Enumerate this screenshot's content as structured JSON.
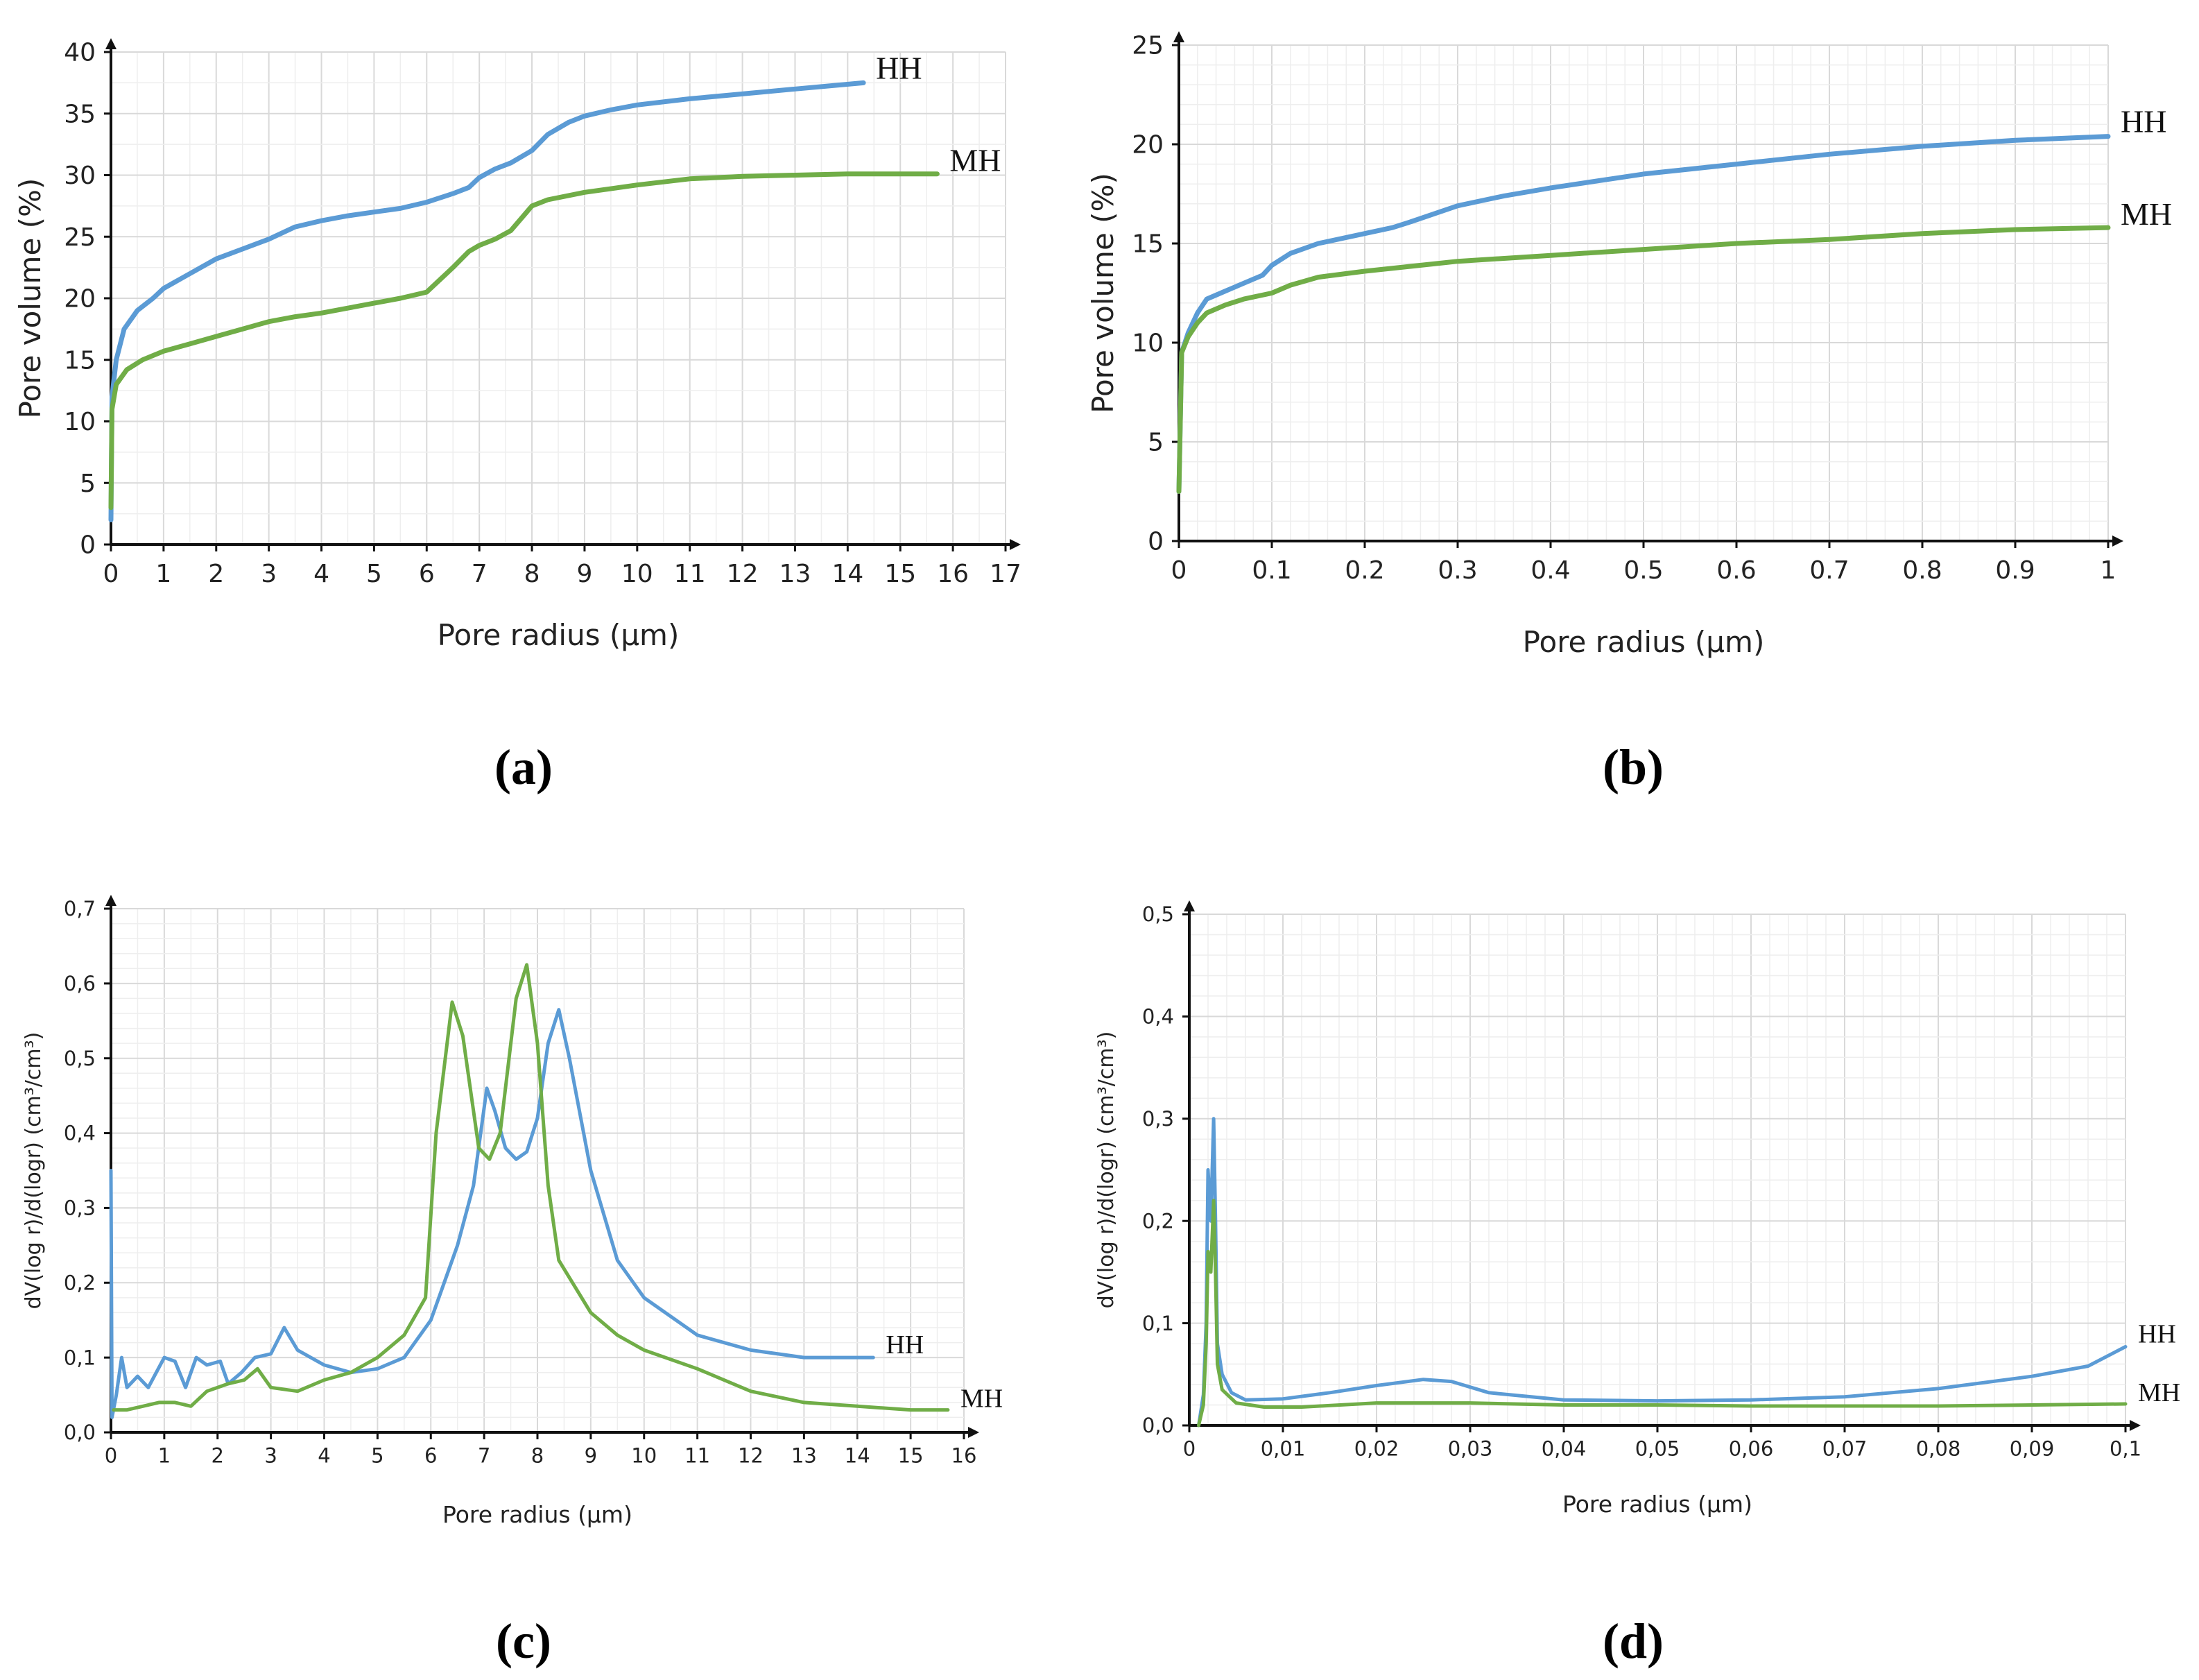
{
  "chart_data": [
    {
      "panel": "a",
      "panel_label": "(a)",
      "type": "line",
      "xlabel": "Pore radius (μm)",
      "ylabel": "Pore volume (%)",
      "xlim": [
        0,
        17
      ],
      "ylim": [
        0,
        40
      ],
      "xticks": [
        "0",
        "1",
        "2",
        "3",
        "4",
        "5",
        "6",
        "7",
        "8",
        "9",
        "10",
        "11",
        "12",
        "13",
        "14",
        "15",
        "16",
        "17"
      ],
      "yticks": [
        "0",
        "5",
        "10",
        "15",
        "20",
        "25",
        "30",
        "35",
        "40"
      ],
      "series": [
        {
          "name": "HH",
          "color": "#5b9bd5",
          "points": [
            [
              0,
              2
            ],
            [
              0.02,
              12
            ],
            [
              0.1,
              15
            ],
            [
              0.25,
              17.5
            ],
            [
              0.5,
              19
            ],
            [
              0.8,
              20
            ],
            [
              1,
              20.8
            ],
            [
              1.5,
              22
            ],
            [
              2,
              23.2
            ],
            [
              2.5,
              24
            ],
            [
              3,
              24.8
            ],
            [
              3.5,
              25.8
            ],
            [
              4,
              26.3
            ],
            [
              4.5,
              26.7
            ],
            [
              5,
              27
            ],
            [
              5.5,
              27.3
            ],
            [
              6,
              27.8
            ],
            [
              6.5,
              28.5
            ],
            [
              6.8,
              29
            ],
            [
              7,
              29.8
            ],
            [
              7.3,
              30.5
            ],
            [
              7.6,
              31
            ],
            [
              8,
              32
            ],
            [
              8.3,
              33.3
            ],
            [
              8.7,
              34.3
            ],
            [
              9,
              34.8
            ],
            [
              9.5,
              35.3
            ],
            [
              10,
              35.7
            ],
            [
              11,
              36.2
            ],
            [
              12,
              36.6
            ],
            [
              13,
              37
            ],
            [
              14.3,
              37.5
            ]
          ]
        },
        {
          "name": "MH",
          "color": "#70ad47",
          "points": [
            [
              0,
              3
            ],
            [
              0.02,
              11
            ],
            [
              0.1,
              13
            ],
            [
              0.3,
              14.2
            ],
            [
              0.6,
              15
            ],
            [
              1,
              15.7
            ],
            [
              1.5,
              16.3
            ],
            [
              2,
              16.9
            ],
            [
              2.5,
              17.5
            ],
            [
              3,
              18.1
            ],
            [
              3.5,
              18.5
            ],
            [
              4,
              18.8
            ],
            [
              4.5,
              19.2
            ],
            [
              5,
              19.6
            ],
            [
              5.5,
              20
            ],
            [
              6,
              20.5
            ],
            [
              6.5,
              22.5
            ],
            [
              6.8,
              23.8
            ],
            [
              7,
              24.3
            ],
            [
              7.3,
              24.8
            ],
            [
              7.6,
              25.5
            ],
            [
              8,
              27.5
            ],
            [
              8.3,
              28
            ],
            [
              9,
              28.6
            ],
            [
              10,
              29.2
            ],
            [
              11,
              29.7
            ],
            [
              12,
              29.9
            ],
            [
              13,
              30
            ],
            [
              14,
              30.1
            ],
            [
              15,
              30.1
            ],
            [
              15.7,
              30.1
            ]
          ]
        }
      ]
    },
    {
      "panel": "b",
      "panel_label": "(b)",
      "type": "line",
      "xlabel": "Pore radius (μm)",
      "ylabel": "Pore volume (%)",
      "xlim": [
        0,
        1
      ],
      "ylim": [
        0,
        25
      ],
      "xticks": [
        "0",
        "0.1",
        "0.2",
        "0.3",
        "0.4",
        "0.5",
        "0.6",
        "0.7",
        "0.8",
        "0.9",
        "1"
      ],
      "yticks": [
        "0",
        "5",
        "10",
        "15",
        "20",
        "25"
      ],
      "series": [
        {
          "name": "HH",
          "color": "#5b9bd5",
          "points": [
            [
              0,
              2.5
            ],
            [
              0.003,
              9.5
            ],
            [
              0.01,
              10.5
            ],
            [
              0.02,
              11.5
            ],
            [
              0.03,
              12.2
            ],
            [
              0.05,
              12.6
            ],
            [
              0.07,
              13
            ],
            [
              0.09,
              13.4
            ],
            [
              0.1,
              13.9
            ],
            [
              0.12,
              14.5
            ],
            [
              0.15,
              15
            ],
            [
              0.2,
              15.5
            ],
            [
              0.23,
              15.8
            ],
            [
              0.25,
              16.1
            ],
            [
              0.3,
              16.9
            ],
            [
              0.35,
              17.4
            ],
            [
              0.4,
              17.8
            ],
            [
              0.5,
              18.5
            ],
            [
              0.6,
              19
            ],
            [
              0.7,
              19.5
            ],
            [
              0.8,
              19.9
            ],
            [
              0.9,
              20.2
            ],
            [
              1,
              20.4
            ]
          ]
        },
        {
          "name": "MH",
          "color": "#70ad47",
          "points": [
            [
              0,
              2.5
            ],
            [
              0.003,
              9.5
            ],
            [
              0.01,
              10.3
            ],
            [
              0.02,
              11
            ],
            [
              0.03,
              11.5
            ],
            [
              0.05,
              11.9
            ],
            [
              0.07,
              12.2
            ],
            [
              0.1,
              12.5
            ],
            [
              0.12,
              12.9
            ],
            [
              0.15,
              13.3
            ],
            [
              0.2,
              13.6
            ],
            [
              0.3,
              14.1
            ],
            [
              0.4,
              14.4
            ],
            [
              0.5,
              14.7
            ],
            [
              0.6,
              15
            ],
            [
              0.7,
              15.2
            ],
            [
              0.8,
              15.5
            ],
            [
              0.9,
              15.7
            ],
            [
              1,
              15.8
            ]
          ]
        }
      ]
    },
    {
      "panel": "c",
      "panel_label": "(c)",
      "type": "line",
      "xlabel": "Pore radius (μm)",
      "ylabel": "dV(log r)/d(logr) (cm³/cm³)",
      "xlim": [
        0,
        16
      ],
      "ylim": [
        0,
        0.7
      ],
      "xticks": [
        "0",
        "1",
        "2",
        "3",
        "4",
        "5",
        "6",
        "7",
        "8",
        "9",
        "10",
        "11",
        "12",
        "13",
        "14",
        "15",
        "16"
      ],
      "yticks": [
        "0,0",
        "0,1",
        "0,2",
        "0,3",
        "0,4",
        "0,5",
        "0,6",
        "0,7"
      ],
      "series": [
        {
          "name": "HH",
          "color": "#5b9bd5",
          "points": [
            [
              0,
              0.35
            ],
            [
              0.02,
              0.02
            ],
            [
              0.1,
              0.05
            ],
            [
              0.2,
              0.1
            ],
            [
              0.3,
              0.06
            ],
            [
              0.5,
              0.075
            ],
            [
              0.7,
              0.06
            ],
            [
              1,
              0.1
            ],
            [
              1.2,
              0.095
            ],
            [
              1.4,
              0.06
            ],
            [
              1.6,
              0.1
            ],
            [
              1.8,
              0.09
            ],
            [
              2.05,
              0.095
            ],
            [
              2.2,
              0.065
            ],
            [
              2.45,
              0.08
            ],
            [
              2.7,
              0.1
            ],
            [
              3,
              0.105
            ],
            [
              3.25,
              0.14
            ],
            [
              3.5,
              0.11
            ],
            [
              4,
              0.09
            ],
            [
              4.5,
              0.08
            ],
            [
              5,
              0.085
            ],
            [
              5.5,
              0.1
            ],
            [
              6,
              0.15
            ],
            [
              6.5,
              0.25
            ],
            [
              6.8,
              0.33
            ],
            [
              7.05,
              0.46
            ],
            [
              7.2,
              0.43
            ],
            [
              7.4,
              0.38
            ],
            [
              7.6,
              0.365
            ],
            [
              7.8,
              0.375
            ],
            [
              8,
              0.42
            ],
            [
              8.2,
              0.52
            ],
            [
              8.4,
              0.565
            ],
            [
              8.6,
              0.5
            ],
            [
              9,
              0.35
            ],
            [
              9.5,
              0.23
            ],
            [
              10,
              0.18
            ],
            [
              11,
              0.13
            ],
            [
              12,
              0.11
            ],
            [
              13,
              0.1
            ],
            [
              14.3,
              0.1
            ]
          ]
        },
        {
          "name": "MH",
          "color": "#70ad47",
          "points": [
            [
              0.05,
              0.03
            ],
            [
              0.3,
              0.03
            ],
            [
              0.6,
              0.035
            ],
            [
              0.9,
              0.04
            ],
            [
              1.2,
              0.04
            ],
            [
              1.5,
              0.035
            ],
            [
              1.8,
              0.055
            ],
            [
              2.2,
              0.065
            ],
            [
              2.5,
              0.07
            ],
            [
              2.75,
              0.085
            ],
            [
              3,
              0.06
            ],
            [
              3.5,
              0.055
            ],
            [
              4,
              0.07
            ],
            [
              4.5,
              0.08
            ],
            [
              5,
              0.1
            ],
            [
              5.5,
              0.13
            ],
            [
              5.9,
              0.18
            ],
            [
              6.1,
              0.4
            ],
            [
              6.4,
              0.575
            ],
            [
              6.6,
              0.53
            ],
            [
              6.9,
              0.38
            ],
            [
              7.1,
              0.365
            ],
            [
              7.3,
              0.4
            ],
            [
              7.6,
              0.58
            ],
            [
              7.8,
              0.625
            ],
            [
              8,
              0.52
            ],
            [
              8.2,
              0.33
            ],
            [
              8.4,
              0.23
            ],
            [
              9,
              0.16
            ],
            [
              9.5,
              0.13
            ],
            [
              10,
              0.11
            ],
            [
              11,
              0.085
            ],
            [
              12,
              0.055
            ],
            [
              13,
              0.04
            ],
            [
              14,
              0.035
            ],
            [
              15,
              0.03
            ],
            [
              15.7,
              0.03
            ]
          ]
        }
      ]
    },
    {
      "panel": "d",
      "panel_label": "(d)",
      "type": "line",
      "xlabel": "Pore radius (μm)",
      "ylabel": "dV(log r)/d(logr) (cm³/cm³)",
      "xlim": [
        0,
        0.1
      ],
      "ylim": [
        0,
        0.5
      ],
      "xticks": [
        "0",
        "0,01",
        "0,02",
        "0,03",
        "0,04",
        "0,05",
        "0,06",
        "0,07",
        "0,08",
        "0,09",
        "0,1"
      ],
      "yticks": [
        "0,0",
        "0,1",
        "0,2",
        "0,3",
        "0,4",
        "0,5"
      ],
      "series": [
        {
          "name": "HH",
          "color": "#5b9bd5",
          "points": [
            [
              0.001,
              0
            ],
            [
              0.0015,
              0.03
            ],
            [
              0.0018,
              0.1
            ],
            [
              0.002,
              0.25
            ],
            [
              0.0023,
              0.2
            ],
            [
              0.0026,
              0.3
            ],
            [
              0.0028,
              0.2
            ],
            [
              0.003,
              0.08
            ],
            [
              0.0035,
              0.05
            ],
            [
              0.0045,
              0.032
            ],
            [
              0.006,
              0.025
            ],
            [
              0.01,
              0.026
            ],
            [
              0.015,
              0.032
            ],
            [
              0.02,
              0.039
            ],
            [
              0.025,
              0.045
            ],
            [
              0.028,
              0.043
            ],
            [
              0.032,
              0.032
            ],
            [
              0.04,
              0.025
            ],
            [
              0.05,
              0.024
            ],
            [
              0.06,
              0.025
            ],
            [
              0.07,
              0.028
            ],
            [
              0.08,
              0.036
            ],
            [
              0.09,
              0.048
            ],
            [
              0.096,
              0.058
            ],
            [
              0.1,
              0.077
            ]
          ]
        },
        {
          "name": "MH",
          "color": "#70ad47",
          "points": [
            [
              0.001,
              0
            ],
            [
              0.0015,
              0.02
            ],
            [
              0.0018,
              0.08
            ],
            [
              0.002,
              0.17
            ],
            [
              0.0023,
              0.15
            ],
            [
              0.0026,
              0.22
            ],
            [
              0.0028,
              0.15
            ],
            [
              0.003,
              0.06
            ],
            [
              0.0035,
              0.035
            ],
            [
              0.005,
              0.022
            ],
            [
              0.008,
              0.018
            ],
            [
              0.012,
              0.018
            ],
            [
              0.02,
              0.022
            ],
            [
              0.03,
              0.022
            ],
            [
              0.04,
              0.02
            ],
            [
              0.05,
              0.02
            ],
            [
              0.06,
              0.019
            ],
            [
              0.07,
              0.019
            ],
            [
              0.08,
              0.019
            ],
            [
              0.09,
              0.02
            ],
            [
              0.1,
              0.021
            ]
          ]
        }
      ]
    }
  ]
}
